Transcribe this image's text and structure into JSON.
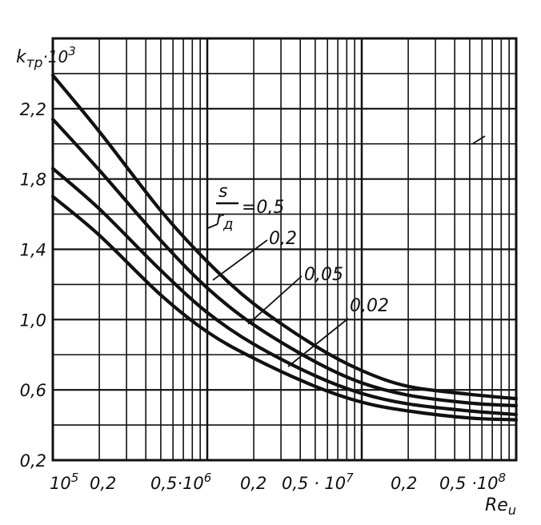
{
  "chart_data": {
    "type": "line",
    "ylabel": "k_тр·10³",
    "ylabel_main": "k",
    "ylabel_sub": "тр",
    "ylabel_mult": "·10",
    "ylabel_exp": "3",
    "xlabel": "Re_u",
    "xlabel_main": "Re",
    "xlabel_sub": "u",
    "x_scale": "log",
    "xlim": [
      100000,
      100000000
    ],
    "ylim": [
      0.2,
      2.6
    ],
    "grid": true,
    "yticks": [
      {
        "value": 0.2,
        "label": "0,2"
      },
      {
        "value": 0.6,
        "label": "0,6"
      },
      {
        "value": 1.0,
        "label": "1,0"
      },
      {
        "value": 1.4,
        "label": "1,4"
      },
      {
        "value": 1.8,
        "label": "1,8"
      },
      {
        "value": 2.2,
        "label": "2,2"
      }
    ],
    "xtick_labels": [
      {
        "base": "10",
        "exp": "5"
      },
      {
        "base": "0,2",
        "exp": ""
      },
      {
        "base": "0,5·10",
        "exp": "6"
      },
      {
        "base": "0,2",
        "exp": ""
      },
      {
        "base": "0,5 · 10",
        "exp": "7"
      },
      {
        "base": "0,2",
        "exp": ""
      },
      {
        "base": "0,5 ·10",
        "exp": "8"
      }
    ],
    "x_grid_values": [
      100000,
      200000,
      300000,
      400000,
      500000,
      600000,
      700000,
      800000,
      900000,
      1000000,
      2000000,
      3000000,
      4000000,
      5000000,
      6000000,
      7000000,
      8000000,
      9000000,
      10000000,
      20000000,
      30000000,
      40000000,
      50000000,
      60000000,
      70000000,
      80000000,
      90000000,
      100000000
    ],
    "y_grid_values": [
      0.2,
      0.4,
      0.6,
      0.8,
      1.0,
      1.2,
      1.4,
      1.6,
      1.8,
      2.0,
      2.2,
      2.4
    ],
    "x": [
      100000,
      200000,
      500000,
      1000000,
      2000000,
      5000000,
      10000000,
      20000000,
      50000000,
      100000000
    ],
    "series": [
      {
        "label": "s/r_д=0,5",
        "values": [
          2.39,
          2.07,
          1.62,
          1.33,
          1.09,
          0.85,
          0.71,
          0.62,
          0.575,
          0.55
        ]
      },
      {
        "label": "0,2",
        "values": [
          2.14,
          1.85,
          1.45,
          1.18,
          0.97,
          0.76,
          0.64,
          0.57,
          0.525,
          0.51
        ]
      },
      {
        "label": "0,05",
        "values": [
          1.86,
          1.63,
          1.28,
          1.04,
          0.86,
          0.68,
          0.58,
          0.52,
          0.48,
          0.46
        ]
      },
      {
        "label": "0,02",
        "values": [
          1.7,
          1.48,
          1.14,
          0.93,
          0.78,
          0.62,
          0.53,
          0.48,
          0.44,
          0.43
        ]
      }
    ],
    "annotations": {
      "main": {
        "numerator": "s",
        "denominator": "r",
        "denominator_sub": "д",
        "equals": "=0,5"
      },
      "others": [
        "0,2",
        "0,05",
        "0,02"
      ]
    }
  }
}
